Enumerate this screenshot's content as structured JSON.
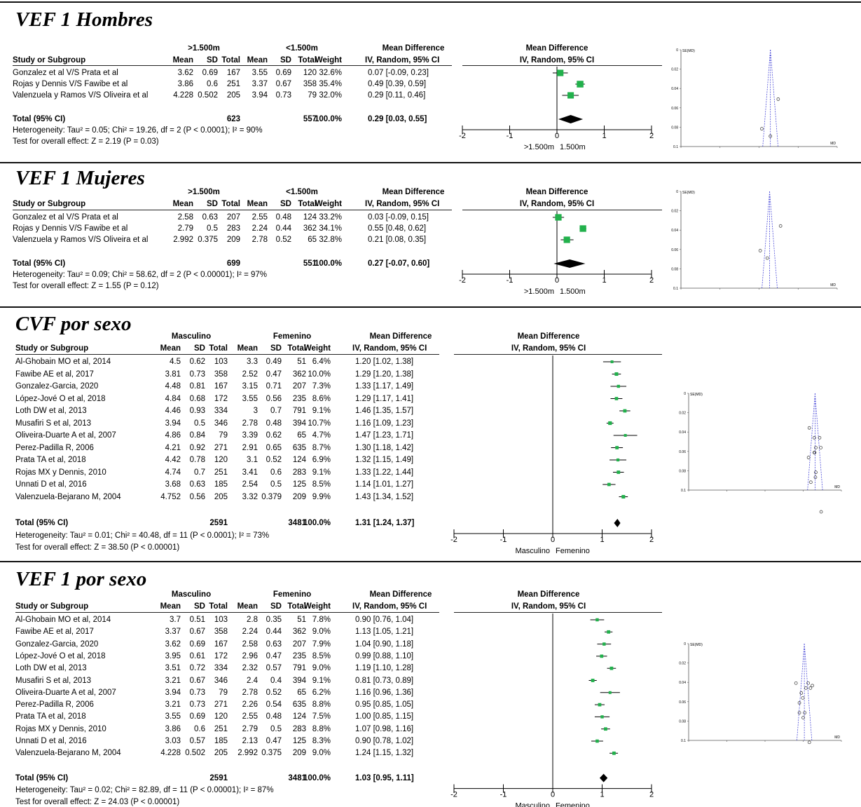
{
  "columns": {
    "study": "Study or Subgroup",
    "mean": "Mean",
    "sd": "SD",
    "total": "Total",
    "weight": "Weight",
    "md_header": "Mean Difference",
    "md_sub": "IV, Random, 95% CI"
  },
  "panels": [
    {
      "title": "VEF 1 Hombres",
      "group1": ">1.500m",
      "group2": "<1.500m",
      "rows": [
        {
          "study": "Gonzalez et al V/S Prata et al",
          "m1": "3.62",
          "sd1": "0.69",
          "n1": "167",
          "m2": "3.55",
          "sd2": "0.69",
          "n2": "120",
          "w": "32.6%",
          "ci": "0.07 [-0.09, 0.23]"
        },
        {
          "study": "Rojas y Dennis V/S Fawibe et al",
          "m1": "3.86",
          "sd1": "0.6",
          "n1": "251",
          "m2": "3.37",
          "sd2": "0.67",
          "n2": "358",
          "w": "35.4%",
          "ci": "0.49 [0.39, 0.59]"
        },
        {
          "study": "Valenzuela y Ramos V/S Oliveira et al",
          "m1": "4.228",
          "sd1": "0.502",
          "n1": "205",
          "m2": "3.94",
          "sd2": "0.73",
          "n2": "79",
          "w": "32.0%",
          "ci": "0.29 [0.11, 0.46]"
        }
      ],
      "total": {
        "label": "Total (95% CI)",
        "n1": "623",
        "n2": "557",
        "w": "100.0%",
        "ci": "0.29 [0.03, 0.55]"
      },
      "heterogeneity": "Heterogeneity: Tau² = 0.05; Chi² = 19.26, df = 2 (P < 0.0001); I² = 90%",
      "overall": "Test for overall effect: Z = 2.19 (P = 0.03)",
      "axis_left": ">1.500m",
      "axis_right": "1.500m"
    },
    {
      "title": "VEF 1 Mujeres",
      "group1": ">1.500m",
      "group2": "<1.500m",
      "rows": [
        {
          "study": "Gonzalez et al V/S Prata et al",
          "m1": "2.58",
          "sd1": "0.63",
          "n1": "207",
          "m2": "2.55",
          "sd2": "0.48",
          "n2": "124",
          "w": "33.2%",
          "ci": "0.03 [-0.09, 0.15]"
        },
        {
          "study": "Rojas y Dennis V/S Fawibe et al",
          "m1": "2.79",
          "sd1": "0.5",
          "n1": "283",
          "m2": "2.24",
          "sd2": "0.44",
          "n2": "362",
          "w": "34.1%",
          "ci": "0.55 [0.48, 0.62]"
        },
        {
          "study": "Valenzuela y Ramos V/S Oliveira et al",
          "m1": "2.992",
          "sd1": "0.375",
          "n1": "209",
          "m2": "2.78",
          "sd2": "0.52",
          "n2": "65",
          "w": "32.8%",
          "ci": "0.21 [0.08, 0.35]"
        }
      ],
      "total": {
        "label": "Total (95% CI)",
        "n1": "699",
        "n2": "551",
        "w": "100.0%",
        "ci": "0.27 [-0.07, 0.60]"
      },
      "heterogeneity": "Heterogeneity: Tau² = 0.09; Chi² = 58.62, df = 2 (P < 0.00001); I² = 97%",
      "overall": "Test for overall effect: Z = 1.55 (P = 0.12)",
      "axis_left": ">1.500m",
      "axis_right": "1.500m"
    },
    {
      "title": "CVF por sexo",
      "group1": "Masculino",
      "group2": "Femenino",
      "rows": [
        {
          "study": "Al-Ghobain MO et al, 2014",
          "m1": "4.5",
          "sd1": "0.62",
          "n1": "103",
          "m2": "3.3",
          "sd2": "0.49",
          "n2": "51",
          "w": "6.4%",
          "ci": "1.20 [1.02, 1.38]"
        },
        {
          "study": "Fawibe AE et al, 2017",
          "m1": "3.81",
          "sd1": "0.73",
          "n1": "358",
          "m2": "2.52",
          "sd2": "0.47",
          "n2": "362",
          "w": "10.0%",
          "ci": "1.29 [1.20, 1.38]"
        },
        {
          "study": "Gonzalez-Garcia, 2020",
          "m1": "4.48",
          "sd1": "0.81",
          "n1": "167",
          "m2": "3.15",
          "sd2": "0.71",
          "n2": "207",
          "w": "7.3%",
          "ci": "1.33 [1.17, 1.49]"
        },
        {
          "study": "López-Jové O et al, 2018",
          "m1": "4.84",
          "sd1": "0.68",
          "n1": "172",
          "m2": "3.55",
          "sd2": "0.56",
          "n2": "235",
          "w": "8.6%",
          "ci": "1.29 [1.17, 1.41]"
        },
        {
          "study": "Loth DW et al, 2013",
          "m1": "4.46",
          "sd1": "0.93",
          "n1": "334",
          "m2": "3",
          "sd2": "0.7",
          "n2": "791",
          "w": "9.1%",
          "ci": "1.46 [1.35, 1.57]"
        },
        {
          "study": "Musafiri S et al, 2013",
          "m1": "3.94",
          "sd1": "0.5",
          "n1": "346",
          "m2": "2.78",
          "sd2": "0.48",
          "n2": "394",
          "w": "10.7%",
          "ci": "1.16 [1.09, 1.23]"
        },
        {
          "study": "Oliveira-Duarte A et al, 2007",
          "m1": "4.86",
          "sd1": "0.84",
          "n1": "79",
          "m2": "3.39",
          "sd2": "0.62",
          "n2": "65",
          "w": "4.7%",
          "ci": "1.47 [1.23, 1.71]"
        },
        {
          "study": "Perez-Padilla R, 2006",
          "m1": "4.21",
          "sd1": "0.92",
          "n1": "271",
          "m2": "2.91",
          "sd2": "0.65",
          "n2": "635",
          "w": "8.7%",
          "ci": "1.30 [1.18, 1.42]"
        },
        {
          "study": "Prata TA et al, 2018",
          "m1": "4.42",
          "sd1": "0.78",
          "n1": "120",
          "m2": "3.1",
          "sd2": "0.52",
          "n2": "124",
          "w": "6.9%",
          "ci": "1.32 [1.15, 1.49]"
        },
        {
          "study": "Rojas MX y Dennis, 2010",
          "m1": "4.74",
          "sd1": "0.7",
          "n1": "251",
          "m2": "3.41",
          "sd2": "0.6",
          "n2": "283",
          "w": "9.1%",
          "ci": "1.33 [1.22, 1.44]"
        },
        {
          "study": "Unnati D et al, 2016",
          "m1": "3.68",
          "sd1": "0.63",
          "n1": "185",
          "m2": "2.54",
          "sd2": "0.5",
          "n2": "125",
          "w": "8.5%",
          "ci": "1.14 [1.01, 1.27]"
        },
        {
          "study": "Valenzuela-Bejarano M, 2004",
          "m1": "4.752",
          "sd1": "0.56",
          "n1": "205",
          "m2": "3.32",
          "sd2": "0.379",
          "n2": "209",
          "w": "9.9%",
          "ci": "1.43 [1.34, 1.52]"
        }
      ],
      "total": {
        "label": "Total (95% CI)",
        "n1": "2591",
        "n2": "3481",
        "w": "100.0%",
        "ci": "1.31 [1.24, 1.37]"
      },
      "heterogeneity": "Heterogeneity: Tau² = 0.01; Chi² = 40.48, df = 11 (P < 0.0001); I² = 73%",
      "overall": "Test for overall effect: Z = 38.50 (P < 0.00001)",
      "axis_left": "Masculino",
      "axis_right": "Femenino"
    },
    {
      "title": "VEF 1 por sexo",
      "group1": "Masculino",
      "group2": "Femenino",
      "rows": [
        {
          "study": "Al-Ghobain MO et al, 2014",
          "m1": "3.7",
          "sd1": "0.51",
          "n1": "103",
          "m2": "2.8",
          "sd2": "0.35",
          "n2": "51",
          "w": "7.8%",
          "ci": "0.90 [0.76, 1.04]"
        },
        {
          "study": "Fawibe AE et al, 2017",
          "m1": "3.37",
          "sd1": "0.67",
          "n1": "358",
          "m2": "2.24",
          "sd2": "0.44",
          "n2": "362",
          "w": "9.0%",
          "ci": "1.13 [1.05, 1.21]"
        },
        {
          "study": "Gonzalez-Garcia, 2020",
          "m1": "3.62",
          "sd1": "0.69",
          "n1": "167",
          "m2": "2.58",
          "sd2": "0.63",
          "n2": "207",
          "w": "7.9%",
          "ci": "1.04 [0.90, 1.18]"
        },
        {
          "study": "López-Jové O et al, 2018",
          "m1": "3.95",
          "sd1": "0.61",
          "n1": "172",
          "m2": "2.96",
          "sd2": "0.47",
          "n2": "235",
          "w": "8.5%",
          "ci": "0.99 [0.88, 1.10]"
        },
        {
          "study": "Loth DW et al, 2013",
          "m1": "3.51",
          "sd1": "0.72",
          "n1": "334",
          "m2": "2.32",
          "sd2": "0.57",
          "n2": "791",
          "w": "9.0%",
          "ci": "1.19 [1.10, 1.28]"
        },
        {
          "study": "Musafiri S et al, 2013",
          "m1": "3.21",
          "sd1": "0.67",
          "n1": "346",
          "m2": "2.4",
          "sd2": "0.4",
          "n2": "394",
          "w": "9.1%",
          "ci": "0.81 [0.73, 0.89]"
        },
        {
          "study": "Oliveira-Duarte A et al, 2007",
          "m1": "3.94",
          "sd1": "0.73",
          "n1": "79",
          "m2": "2.78",
          "sd2": "0.52",
          "n2": "65",
          "w": "6.2%",
          "ci": "1.16 [0.96, 1.36]"
        },
        {
          "study": "Perez-Padilla R, 2006",
          "m1": "3.21",
          "sd1": "0.73",
          "n1": "271",
          "m2": "2.26",
          "sd2": "0.54",
          "n2": "635",
          "w": "8.8%",
          "ci": "0.95 [0.85, 1.05]"
        },
        {
          "study": "Prata TA et al, 2018",
          "m1": "3.55",
          "sd1": "0.69",
          "n1": "120",
          "m2": "2.55",
          "sd2": "0.48",
          "n2": "124",
          "w": "7.5%",
          "ci": "1.00 [0.85, 1.15]"
        },
        {
          "study": "Rojas MX y Dennis, 2010",
          "m1": "3.86",
          "sd1": "0.6",
          "n1": "251",
          "m2": "2.79",
          "sd2": "0.5",
          "n2": "283",
          "w": "8.8%",
          "ci": "1.07 [0.98, 1.16]"
        },
        {
          "study": "Unnati D et al, 2016",
          "m1": "3.03",
          "sd1": "0.57",
          "n1": "185",
          "m2": "2.13",
          "sd2": "0.47",
          "n2": "125",
          "w": "8.3%",
          "ci": "0.90 [0.78, 1.02]"
        },
        {
          "study": "Valenzuela-Bejarano M, 2004",
          "m1": "4.228",
          "sd1": "0.502",
          "n1": "205",
          "m2": "2.992",
          "sd2": "0.375",
          "n2": "209",
          "w": "9.0%",
          "ci": "1.24 [1.15, 1.32]"
        }
      ],
      "total": {
        "label": "Total (95% CI)",
        "n1": "2591",
        "n2": "3481",
        "w": "100.0%",
        "ci": "1.03 [0.95, 1.11]"
      },
      "heterogeneity": "Heterogeneity: Tau² = 0.02; Chi² = 82.89, df = 11 (P < 0.00001); I² = 87%",
      "overall": "Test for overall effect: Z = 24.03 (P < 0.00001)",
      "axis_left": "Masculino",
      "axis_right": "Femenino"
    }
  ],
  "chart_data": [
    {
      "type": "scatter",
      "title": "VEF 1 Hombres",
      "xlim": [
        -2,
        2
      ],
      "x_ticks": [
        "-2",
        "-1",
        "0",
        "1",
        "2"
      ],
      "marker_color": "#22b14c",
      "points": [
        {
          "md": 0.07,
          "lo": -0.09,
          "hi": 0.23,
          "weight": 32.6
        },
        {
          "md": 0.49,
          "lo": 0.39,
          "hi": 0.59,
          "weight": 35.4
        },
        {
          "md": 0.29,
          "lo": 0.11,
          "hi": 0.46,
          "weight": 32.0
        }
      ],
      "pooled": {
        "md": 0.29,
        "lo": 0.03,
        "hi": 0.55
      }
    },
    {
      "type": "scatter",
      "title": "VEF 1 Mujeres",
      "xlim": [
        -2,
        2
      ],
      "x_ticks": [
        "-2",
        "-1",
        "0",
        "1",
        "2"
      ],
      "marker_color": "#22b14c",
      "points": [
        {
          "md": 0.03,
          "lo": -0.09,
          "hi": 0.15,
          "weight": 33.2
        },
        {
          "md": 0.55,
          "lo": 0.48,
          "hi": 0.62,
          "weight": 34.1
        },
        {
          "md": 0.21,
          "lo": 0.08,
          "hi": 0.35,
          "weight": 32.8
        }
      ],
      "pooled": {
        "md": 0.27,
        "lo": -0.07,
        "hi": 0.6
      }
    },
    {
      "type": "scatter",
      "title": "CVF por sexo",
      "xlim": [
        -2,
        2
      ],
      "x_ticks": [
        "-2",
        "-1",
        "0",
        "1",
        "2"
      ],
      "marker_color": "#22b14c",
      "points": [
        {
          "md": 1.2,
          "lo": 1.02,
          "hi": 1.38,
          "weight": 6.4
        },
        {
          "md": 1.29,
          "lo": 1.2,
          "hi": 1.38,
          "weight": 10.0
        },
        {
          "md": 1.33,
          "lo": 1.17,
          "hi": 1.49,
          "weight": 7.3
        },
        {
          "md": 1.29,
          "lo": 1.17,
          "hi": 1.41,
          "weight": 8.6
        },
        {
          "md": 1.46,
          "lo": 1.35,
          "hi": 1.57,
          "weight": 9.1
        },
        {
          "md": 1.16,
          "lo": 1.09,
          "hi": 1.23,
          "weight": 10.7
        },
        {
          "md": 1.47,
          "lo": 1.23,
          "hi": 1.71,
          "weight": 4.7
        },
        {
          "md": 1.3,
          "lo": 1.18,
          "hi": 1.42,
          "weight": 8.7
        },
        {
          "md": 1.32,
          "lo": 1.15,
          "hi": 1.49,
          "weight": 6.9
        },
        {
          "md": 1.33,
          "lo": 1.22,
          "hi": 1.44,
          "weight": 9.1
        },
        {
          "md": 1.14,
          "lo": 1.01,
          "hi": 1.27,
          "weight": 8.5
        },
        {
          "md": 1.43,
          "lo": 1.34,
          "hi": 1.52,
          "weight": 9.9
        }
      ],
      "pooled": {
        "md": 1.31,
        "lo": 1.24,
        "hi": 1.37
      }
    },
    {
      "type": "scatter",
      "title": "VEF 1 por sexo",
      "xlim": [
        -2,
        2
      ],
      "x_ticks": [
        "-2",
        "-1",
        "0",
        "1",
        "2"
      ],
      "marker_color": "#22b14c",
      "points": [
        {
          "md": 0.9,
          "lo": 0.76,
          "hi": 1.04,
          "weight": 7.8
        },
        {
          "md": 1.13,
          "lo": 1.05,
          "hi": 1.21,
          "weight": 9.0
        },
        {
          "md": 1.04,
          "lo": 0.9,
          "hi": 1.18,
          "weight": 7.9
        },
        {
          "md": 0.99,
          "lo": 0.88,
          "hi": 1.1,
          "weight": 8.5
        },
        {
          "md": 1.19,
          "lo": 1.1,
          "hi": 1.28,
          "weight": 9.0
        },
        {
          "md": 0.81,
          "lo": 0.73,
          "hi": 0.89,
          "weight": 9.1
        },
        {
          "md": 1.16,
          "lo": 0.96,
          "hi": 1.36,
          "weight": 6.2
        },
        {
          "md": 0.95,
          "lo": 0.85,
          "hi": 1.05,
          "weight": 8.8
        },
        {
          "md": 1.0,
          "lo": 0.85,
          "hi": 1.15,
          "weight": 7.5
        },
        {
          "md": 1.07,
          "lo": 0.98,
          "hi": 1.16,
          "weight": 8.8
        },
        {
          "md": 0.9,
          "lo": 0.78,
          "hi": 1.02,
          "weight": 8.3
        },
        {
          "md": 1.24,
          "lo": 1.15,
          "hi": 1.32,
          "weight": 9.0
        }
      ],
      "pooled": {
        "md": 1.03,
        "lo": 0.95,
        "hi": 1.11
      }
    }
  ],
  "funnel": {
    "y_label": "SE(MD)",
    "x_label": "MD",
    "y_ticks": [
      "0",
      "0.02",
      "0.04",
      "0.06",
      "0.08",
      "0.1"
    ],
    "line_color": "#4b4bd8"
  }
}
